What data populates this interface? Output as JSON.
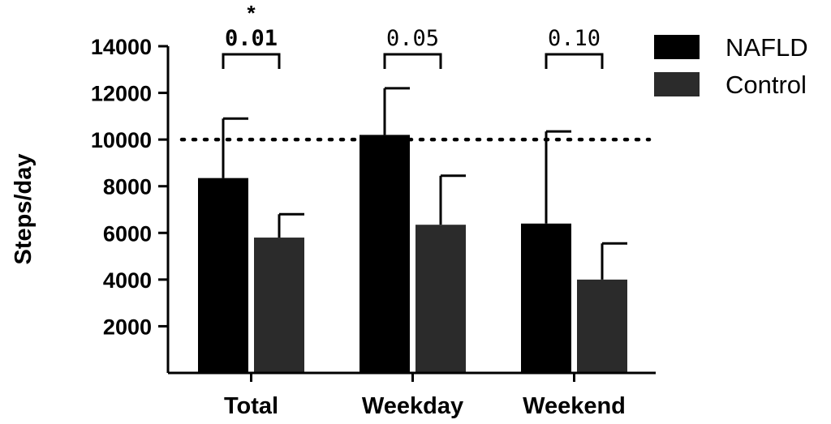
{
  "chart_data": {
    "type": "bar",
    "title": "",
    "xlabel": "",
    "ylabel": "Steps/day",
    "ylim": [
      0,
      14000
    ],
    "yticks": [
      2000,
      4000,
      6000,
      8000,
      10000,
      12000,
      14000
    ],
    "ytick_labels": [
      "2000",
      "4000",
      "6000",
      "8000",
      "10000",
      "12000",
      "14000"
    ],
    "categories": [
      "Total",
      "Weekday",
      "Weekend"
    ],
    "series": [
      {
        "name": "NAFLD",
        "color": "#000000",
        "values": [
          8350,
          10200,
          6400
        ],
        "error": [
          2550,
          2000,
          3950
        ]
      },
      {
        "name": "Control",
        "color": "#2b2b2b",
        "values": [
          5800,
          6350,
          4000
        ],
        "error": [
          1000,
          2100,
          1550
        ]
      }
    ],
    "reference_line": {
      "value": 10000,
      "style": "dotted"
    },
    "legend": {
      "position": "top-right",
      "entries": [
        "NAFLD",
        "Control"
      ]
    },
    "annotations": [
      {
        "category": "Total",
        "p_value": "0.01",
        "bold": true,
        "significance": "*"
      },
      {
        "category": "Weekday",
        "p_value": "0.05",
        "bold": false,
        "significance": ""
      },
      {
        "category": "Weekend",
        "p_value": "0.10",
        "bold": false,
        "significance": ""
      }
    ]
  }
}
